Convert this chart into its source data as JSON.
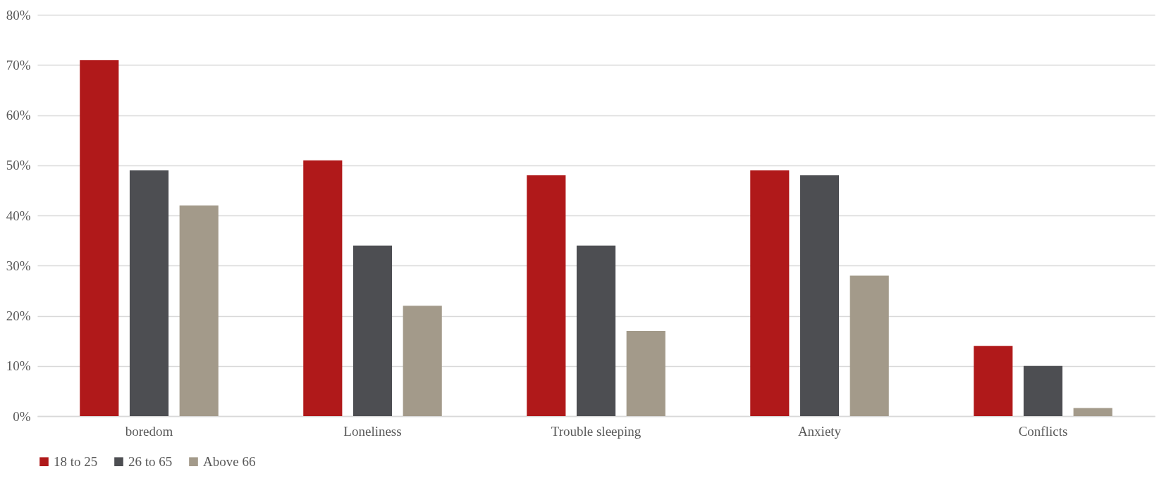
{
  "chart_data": {
    "type": "bar",
    "categories": [
      "boredom",
      "Loneliness",
      "Trouble sleeping",
      "Anxiety",
      "Conflicts"
    ],
    "series": [
      {
        "name": "18 to 25",
        "color": "#b0191a",
        "values": [
          71,
          51,
          48,
          49,
          14
        ]
      },
      {
        "name": "26 to 65",
        "color": "#4d4e52",
        "values": [
          49,
          34,
          34,
          48,
          10
        ]
      },
      {
        "name": "Above 66",
        "color": "#a39a8a",
        "values": [
          42,
          22,
          17,
          28,
          1.6
        ]
      }
    ],
    "ylim": [
      0,
      80
    ],
    "yticks": [
      {
        "value": 0,
        "label": "0%"
      },
      {
        "value": 10,
        "label": "10%"
      },
      {
        "value": 20,
        "label": "20%"
      },
      {
        "value": 30,
        "label": "30%"
      },
      {
        "value": 40,
        "label": "40%"
      },
      {
        "value": 50,
        "label": "50%"
      },
      {
        "value": 60,
        "label": "60%"
      },
      {
        "value": 70,
        "label": "70%"
      },
      {
        "value": 80,
        "label": "80%"
      }
    ],
    "grid": "y",
    "legend": "bottom"
  }
}
